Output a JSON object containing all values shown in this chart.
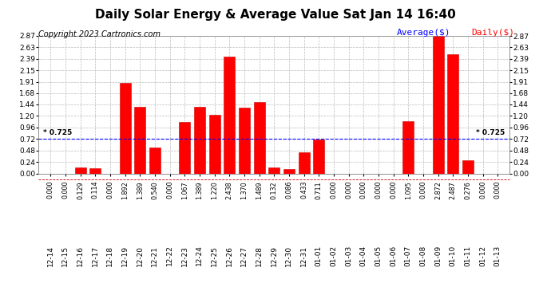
{
  "title": "Daily Solar Energy & Average Value Sat Jan 14 16:40",
  "copyright": "Copyright 2023 Cartronics.com",
  "average_label": "Average($)",
  "daily_label": "Daily($)",
  "average_value": 0.725,
  "categories": [
    "12-14",
    "12-15",
    "12-16",
    "12-17",
    "12-18",
    "12-19",
    "12-20",
    "12-21",
    "12-22",
    "12-23",
    "12-24",
    "12-25",
    "12-26",
    "12-27",
    "12-28",
    "12-29",
    "12-30",
    "12-31",
    "01-01",
    "01-02",
    "01-03",
    "01-04",
    "01-05",
    "01-06",
    "01-07",
    "01-08",
    "01-09",
    "01-10",
    "01-11",
    "01-12",
    "01-13"
  ],
  "values": [
    0.0,
    0.0,
    0.129,
    0.114,
    0.0,
    1.892,
    1.389,
    0.54,
    0.0,
    1.067,
    1.389,
    1.22,
    2.438,
    1.37,
    1.489,
    0.132,
    0.086,
    0.433,
    0.711,
    0.0,
    0.0,
    0.0,
    0.0,
    0.0,
    1.095,
    0.0,
    2.872,
    2.487,
    0.276,
    0.0,
    0.0
  ],
  "bar_color": "#ff0000",
  "bar_edge_color": "#cc0000",
  "avg_line_color": "#0000ff",
  "avg_line_style": "--",
  "background_color": "#ffffff",
  "grid_color": "#bbbbbb",
  "ylim_max": 2.87,
  "yticks": [
    0.0,
    0.24,
    0.48,
    0.72,
    0.96,
    1.2,
    1.44,
    1.68,
    1.91,
    2.15,
    2.39,
    2.63,
    2.87
  ],
  "title_fontsize": 11,
  "copyright_fontsize": 7,
  "legend_fontsize": 8,
  "tick_fontsize": 6.5,
  "value_fontsize": 5.8
}
